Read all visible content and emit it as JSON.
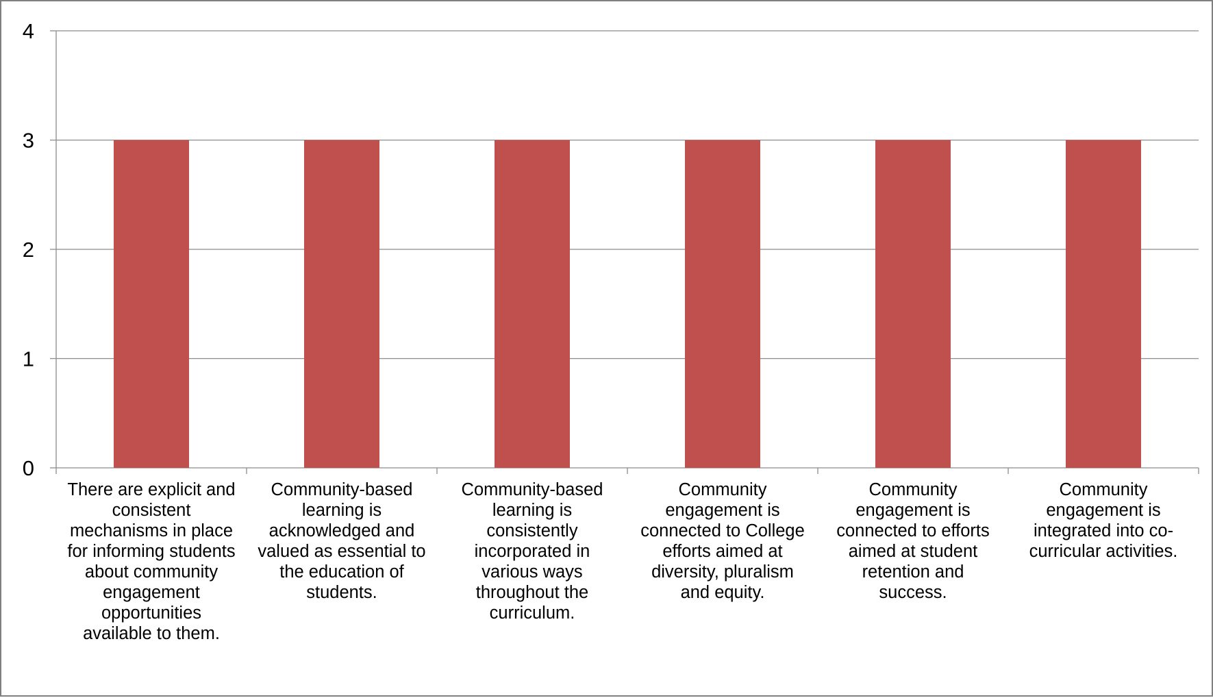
{
  "chart_data": {
    "type": "bar",
    "title": "",
    "xlabel": "",
    "ylabel": "",
    "ylim": [
      0,
      4
    ],
    "yticks": [
      "0",
      "1",
      "2",
      "3",
      "4"
    ],
    "grid": true,
    "legend": "none",
    "bar_color": "#c0504d",
    "categories": [
      "There are explicit and consistent mechanisms in place for informing students about community engagement opportunities available to them.",
      "Community-based learning is acknowledged and valued as essential to the education of students.",
      "Community-based learning is consistently incorporated in various ways throughout the curriculum.",
      "Community engagement is connected to College efforts aimed at diversity, pluralism and equity.",
      "Community engagement is connected to efforts aimed at student retention and success.",
      "Community engagement is integrated into co-curricular activities."
    ],
    "values": [
      3,
      3,
      3,
      3,
      3,
      3
    ]
  }
}
